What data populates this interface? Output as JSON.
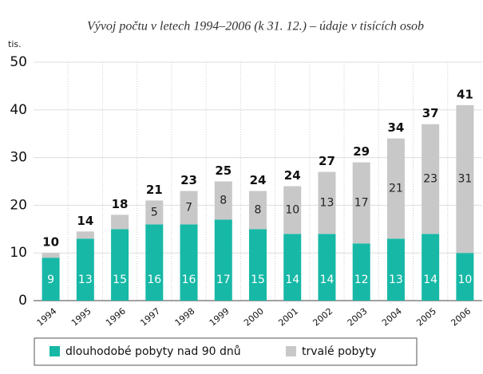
{
  "chart_data": {
    "type": "stacked_bar",
    "title": "Vývoj počtu v letech 1994–2006 (k 31. 12.) – údaje v tisících osob",
    "y_unit": "tis.",
    "categories": [
      "1994",
      "1995",
      "1996",
      "1997",
      "1998",
      "1999",
      "2000",
      "2001",
      "2002",
      "2003",
      "2004",
      "2005",
      "2006"
    ],
    "series": [
      {
        "name": "dlouhodobé pobyty nad 90 dnů",
        "color": "#17b8a6",
        "values": [
          9,
          13,
          15,
          16,
          16,
          17,
          15,
          14,
          14,
          12,
          13,
          14,
          10
        ]
      },
      {
        "name": "trvalé pobyty",
        "color": "#c8c8c8",
        "values": [
          1,
          1.5,
          3,
          5,
          7,
          8,
          8,
          10,
          13,
          17,
          21,
          23,
          31
        ],
        "value_labels": [
          null,
          null,
          null,
          "5",
          "7",
          "8",
          "8",
          "10",
          "13",
          "17",
          "21",
          "23",
          "31"
        ]
      }
    ],
    "totals": [
      10,
      14,
      18,
      21,
      23,
      25,
      24,
      24,
      27,
      29,
      34,
      37,
      41
    ],
    "ylim": [
      0,
      50
    ],
    "yticks": [
      0,
      10,
      20,
      30,
      40,
      50
    ],
    "grid": true
  }
}
